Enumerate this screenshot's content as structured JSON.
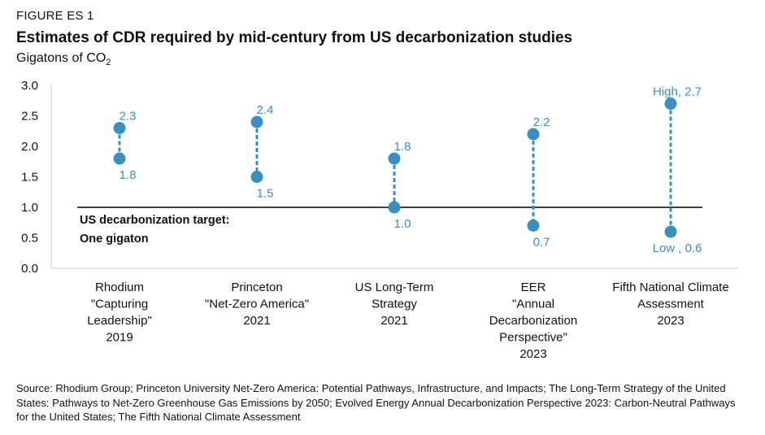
{
  "figure_label": "FIGURE ES 1",
  "chart_data": {
    "type": "range-dot",
    "title": "Estimates of CDR required by mid-century from US decarbonization studies",
    "subtitle_main": "Gigatons of CO",
    "subtitle_sub": "2",
    "ylim": [
      0,
      3.0
    ],
    "yticks": [
      "0.0",
      "0.5",
      "1.0",
      "1.5",
      "2.0",
      "2.5",
      "3.0"
    ],
    "grid": false,
    "target": {
      "value": 1.0,
      "label_line1": "US decarbonization target:",
      "label_line2": "One gigaton"
    },
    "studies": [
      {
        "label_lines": [
          "Rhodium",
          "\"Capturing",
          "Leadership\"",
          "2019"
        ],
        "high": 2.3,
        "low": 1.8,
        "high_label": "2.3",
        "low_label": "1.8"
      },
      {
        "label_lines": [
          "Princeton",
          "\"Net-Zero America\"",
          "2021"
        ],
        "high": 2.4,
        "low": 1.5,
        "high_label": "2.4",
        "low_label": "1.5"
      },
      {
        "label_lines": [
          "US Long-Term",
          "Strategy",
          "2021"
        ],
        "high": 1.8,
        "low": 1.0,
        "high_label": "1.8",
        "low_label": "1.0"
      },
      {
        "label_lines": [
          "EER",
          "\"Annual",
          "Decarbonization",
          "Perspective\"",
          "2023"
        ],
        "high": 2.2,
        "low": 0.7,
        "high_label": "2.2",
        "low_label": "0.7"
      },
      {
        "label_lines": [
          "Fifth National Climate",
          "Assessment",
          "2023"
        ],
        "high": 2.7,
        "low": 0.6,
        "high_label": "High, 2.7",
        "low_label": "Low , 0.6"
      }
    ],
    "colors": {
      "dot": "#3a8fc2",
      "label": "#3a8fc2",
      "axis": "#c8c8c8",
      "target_line": "#000000"
    }
  },
  "source": "Source: Rhodium Group; Princeton University Net-Zero America: Potential Pathways, Infrastructure, and Impacts; The Long-Term Strategy of the United States: Pathways to Net-Zero Greenhouse Gas Emissions by 2050; Evolved Energy Annual Decarbonization Perspective 2023: Carbon-Neutral Pathways for the United States; The Fifth National Climate Assessment"
}
